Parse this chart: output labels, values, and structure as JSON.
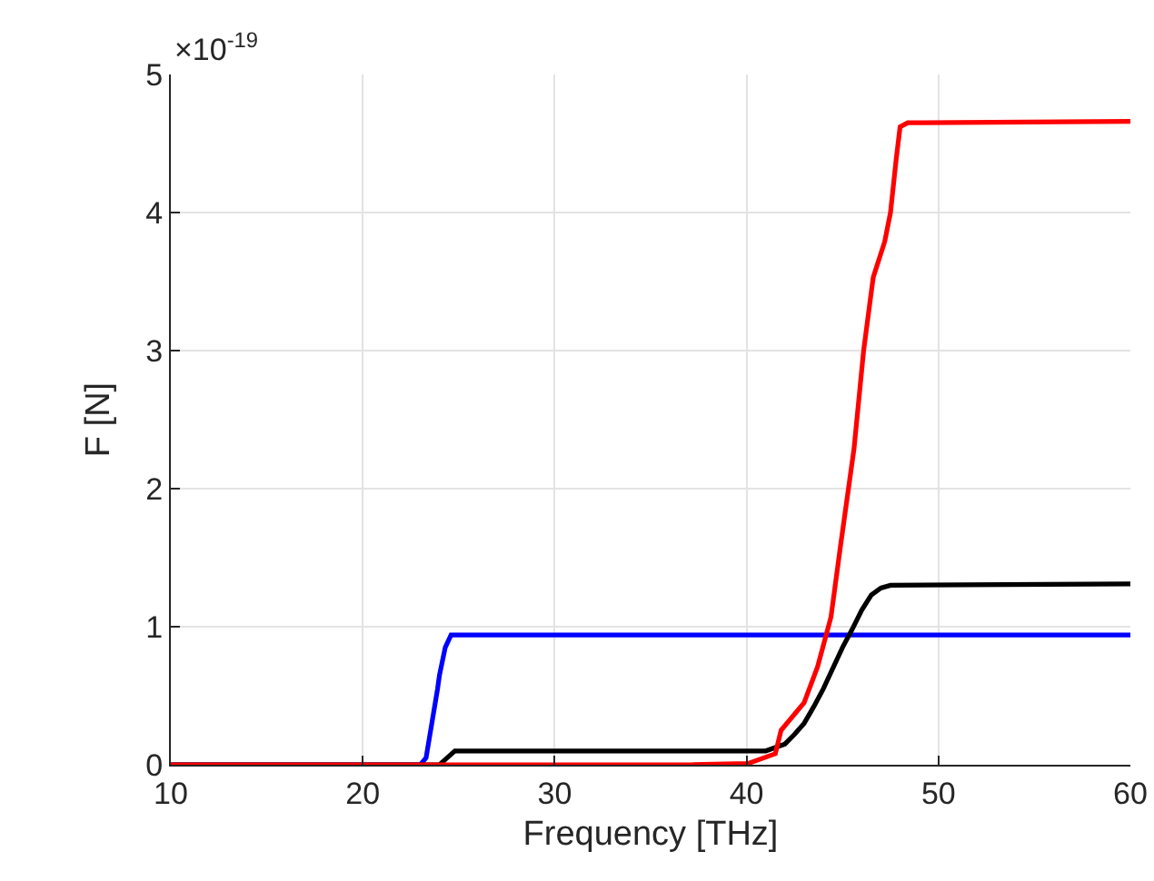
{
  "chart_data": {
    "type": "line",
    "xlabel": "Frequency [THz]",
    "ylabel": "F [N]",
    "annotations": [
      "×10$^{-19}$"
    ],
    "xlim": [
      10,
      60
    ],
    "xticks": [
      10,
      20,
      30,
      40,
      50,
      60
    ],
    "ylim": [
      0,
      5
    ],
    "yticks": [
      0,
      1,
      2,
      3,
      4,
      5
    ],
    "grid": true,
    "marker": "none",
    "line_style": "solid",
    "series": [
      {
        "color": "#0000ff",
        "x": [
          10,
          23.0,
          23.3,
          23.6,
          23.9,
          24.0,
          24.3,
          24.6,
          25,
          60
        ],
        "values": [
          0,
          0,
          0.05,
          0.3,
          0.55,
          0.65,
          0.85,
          0.94,
          0.94,
          0.94
        ]
      },
      {
        "color": "#000000",
        "x": [
          10,
          24.0,
          24.4,
          24.8,
          41,
          42,
          42.5,
          43,
          43.5,
          44,
          44.5,
          45,
          45.5,
          46,
          46.5,
          47,
          47.5,
          60
        ],
        "values": [
          0,
          0,
          0.05,
          0.1,
          0.1,
          0.15,
          0.22,
          0.3,
          0.42,
          0.55,
          0.7,
          0.85,
          0.98,
          1.12,
          1.23,
          1.28,
          1.3,
          1.31
        ]
      },
      {
        "color": "#ff0000",
        "x": [
          10,
          37.1,
          40.1,
          41.5,
          41.8,
          43.0,
          43.7,
          44.4,
          44.9,
          45.6,
          46.1,
          46.6,
          47.2,
          47.5,
          47.8,
          48.0,
          48.4,
          60
        ],
        "values": [
          0,
          0,
          0.01,
          0.08,
          0.25,
          0.45,
          0.71,
          1.07,
          1.59,
          2.29,
          3.0,
          3.53,
          3.79,
          4.0,
          4.39,
          4.62,
          4.65,
          4.66
        ]
      }
    ]
  }
}
